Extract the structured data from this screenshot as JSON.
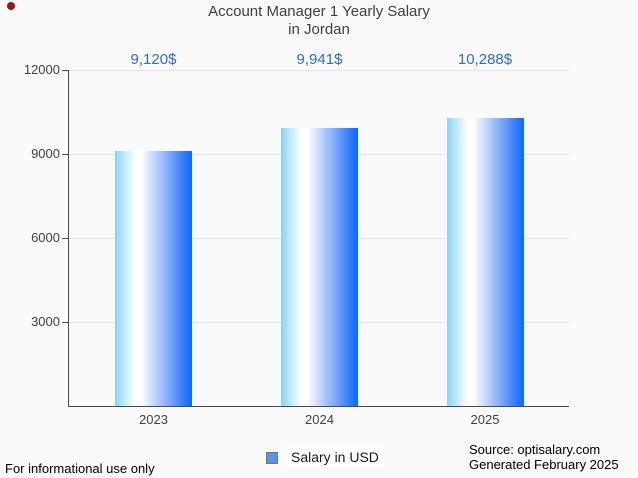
{
  "title": {
    "line1": "Account Manager 1 Yearly Salary",
    "line2": "in Jordan"
  },
  "chart_data": {
    "type": "bar",
    "title": "Account Manager 1 Yearly Salary in Jordan",
    "categories": [
      "2023",
      "2024",
      "2025"
    ],
    "values": [
      9120,
      9941,
      10288
    ],
    "value_labels": [
      "9,120$",
      "9,941$",
      "10,288$"
    ],
    "series_name": "Salary in USD",
    "xlabel": "",
    "ylabel": "",
    "ylim": [
      0,
      12000
    ],
    "yticks": [
      3000,
      6000,
      9000,
      12000
    ],
    "ytick_labels": [
      "3000",
      "6000",
      "9000",
      "12000"
    ],
    "grid": true,
    "legend_position": "bottom",
    "bar_gradient": [
      "#87d3fa",
      "#ffffff",
      "#0d69fc"
    ]
  },
  "legend": {
    "label": "Salary in USD",
    "marker_color": "#4f97e8"
  },
  "footer": {
    "left": "For informational use only",
    "source": "Source: optisalary.com",
    "generated": "Generated February 2025"
  },
  "colors": {
    "accent_blue": "#2a6cdb",
    "axis_text": "#424242",
    "title_text": "#3f3f3f",
    "gridline": "#e4e4e4",
    "axis_line": "#4a4a4a",
    "background": "#fafafa",
    "record_dot": "#9e1414"
  }
}
